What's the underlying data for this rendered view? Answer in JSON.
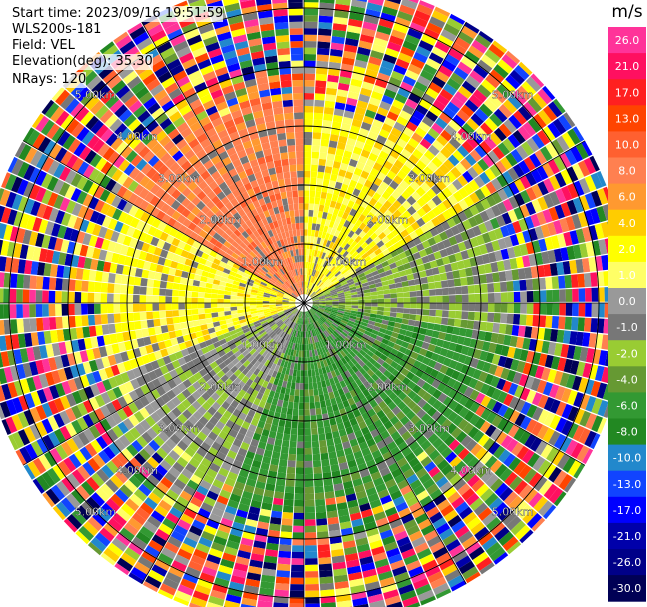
{
  "header": {
    "start_time": "Start time: 2023/09/16 19:51:59",
    "instrument": "WLS200s-181",
    "field": "Field: VEL",
    "elevation": "Elevation(deg): 35.30",
    "nrays": "NRays: 120"
  },
  "chart_data": {
    "type": "heatmap",
    "projection": "polar-ppi",
    "nrays": 120,
    "range_rings_km": [
      1,
      2,
      3,
      4,
      5
    ],
    "range_labels": [
      "1.00km",
      "2.00km",
      "3.00km",
      "4.00km",
      "5.00km"
    ],
    "max_range_km": 5.5,
    "spoke_angles_deg": [
      0,
      30,
      60,
      90,
      120,
      150,
      180,
      210,
      240,
      270,
      300,
      330
    ],
    "colorbar": {
      "unit": "m/s",
      "ticks": [
        "26.0",
        "21.0",
        "17.0",
        "13.0",
        "10.0",
        "8.0",
        "6.0",
        "4.0",
        "2.0",
        "1.0",
        "0.0",
        "-1.0",
        "-2.0",
        "-4.0",
        "-6.0",
        "-8.0",
        "-10.0",
        "-13.0",
        "-17.0",
        "-21.0",
        "-26.0",
        "-30.0"
      ],
      "colors": [
        "#ff3399",
        "#ff1060",
        "#ff2020",
        "#ff4400",
        "#ff6030",
        "#ff8050",
        "#ff9930",
        "#ffcc00",
        "#ffff00",
        "#ffff66",
        "#999999",
        "#777777",
        "#99cc33",
        "#669933",
        "#339933",
        "#228822",
        "#2288cc",
        "#1144ff",
        "#0000ff",
        "#0000aa",
        "#000088",
        "#000055"
      ]
    },
    "velocity_pattern": {
      "near_range_km": 3.2,
      "sectors": [
        {
          "from_deg": 0,
          "to_deg": 60,
          "value_mps": 2.0
        },
        {
          "from_deg": 60,
          "to_deg": 100,
          "value_mps": -2.0
        },
        {
          "from_deg": 100,
          "to_deg": 200,
          "value_mps": -6.0
        },
        {
          "from_deg": 200,
          "to_deg": 250,
          "value_mps": -1.0
        },
        {
          "from_deg": 250,
          "to_deg": 300,
          "value_mps": 2.0
        },
        {
          "from_deg": 300,
          "to_deg": 360,
          "value_mps": 8.0
        }
      ],
      "far_range": "noise"
    }
  }
}
